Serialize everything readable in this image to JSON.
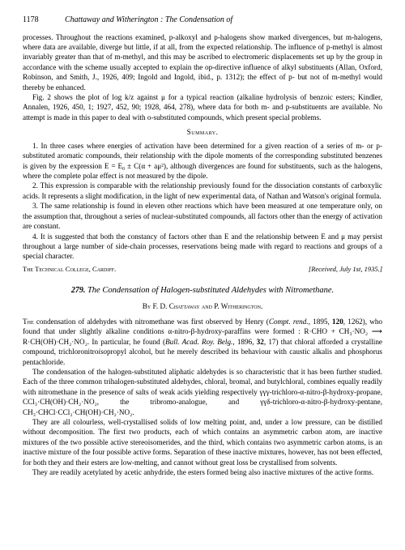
{
  "header": {
    "page_number": "1178",
    "running_head": "Chattaway and Witherington : The Condensation of"
  },
  "top_section": {
    "para1": "processes. Throughout the reactions examined, p-alkoxyl and p-halogens show marked divergences, but m-halogens, where data are available, diverge but little, if at all, from the expected relationship. The influence of p-methyl is almost invariably greater than that of m-methyl, and this may be ascribed to electromeric displacements set up by the group in accordance with the scheme usually accepted to explain the op-directive influence of alkyl substituents (Allan, Oxford, Robinson, and Smith, J., 1926, 409; Ingold and Ingold, ibid., p. 1312); the effect of p- but not of m-methyl would thereby be enhanced.",
    "para2": "Fig. 2 shows the plot of log k/z against μ for a typical reaction (alkaline hydrolysis of benzoic esters; Kindler, Annalen, 1926, 450, 1; 1927, 452, 90; 1928, 464, 278), where data for both m- and p-substituents are available. No attempt is made in this paper to deal with o-substituted compounds, which present special problems."
  },
  "summary": {
    "heading": "Summary.",
    "item1": "1. In three cases where energies of activation have been determined for a given reaction of a series of m- or p-substituted aromatic compounds, their relationship with the dipole moments of the corresponding substituted benzenes is given by the expression E = E₀ ± C(α + aμ²), although divergences are found for substituents, such as the halogens, where the complete polar effect is not measured by the dipole.",
    "item2": "2. This expression is comparable with the relationship previously found for the dissociation constants of carboxylic acids. It represents a slight modification, in the light of new experimental data, of Nathan and Watson's original formula.",
    "item3": "3. The same relationship is found in eleven other reactions which have been measured at one temperature only, on the assumption that, throughout a series of nuclear-substituted compounds, all factors other than the energy of activation are constant.",
    "item4": "4. It is suggested that both the constancy of factors other than E and the relationship between E and μ may persist throughout a large number of side-chain processes, reservations being made with regard to reactions and groups of a special character."
  },
  "footer": {
    "left": "The Technical College, Cardiff.",
    "right": "[Received, July 1st, 1935.]"
  },
  "article": {
    "number": "279.",
    "title": "The Condensation of Halogen-substituted Aldehydes with Nitromethane.",
    "byline": "By F. D. Chattaway and P. Witherington.",
    "para1": "The condensation of aldehydes with nitromethane was first observed by Henry (Compt. rend., 1895, 120, 1262), who found that under slightly alkaline conditions α-nitro-β-hydroxy-paraffins were formed : R·CHO + CH₃·NO₂ ⟶ R·CH(OH)·CH₂·NO₂. In particular, he found (Bull. Acad. Roy. Belg., 1896, 32, 17) that chloral afforded a crystalline compound, trichloronitroisopropyl alcohol, but he merely described its behaviour with caustic alkalis and phosphorus pentachloride.",
    "para2": "The condensation of the halogen-substituted aliphatic aldehydes is so characteristic that it has been further studied. Each of the three common trihalogen-substituted aldehydes, chloral, bromal, and butylchloral, combines equally readily with nitromethane in the presence of salts of weak acids yielding respectively γγγ-trichloro-α-nitro-β-hydroxy-propane, CCl₃·CH(OH)·CH₂·NO₂, the tribromo-analogue, and γγδ-trichloro-α-nitro-β-hydroxy-pentane, CH₃·CHCl·CCl₂·CH(OH)·CH₂·NO₂.",
    "para3": "They are all colourless, well-crystallised solids of low melting point, and, under a low pressure, can be distilled without decomposition. The first two products, each of which contains an asymmetric carbon atom, are inactive mixtures of the two possible active stereoisomerides, and the third, which contains two asymmetric carbon atoms, is an inactive mixture of the four possible active forms. Separation of these inactive mixtures, however, has not been effected, for both they and their esters are low-melting, and cannot without great loss be crystallised from solvents.",
    "para4": "They are readily acetylated by acetic anhydride, the esters formed being also inactive mixtures of the active forms."
  }
}
